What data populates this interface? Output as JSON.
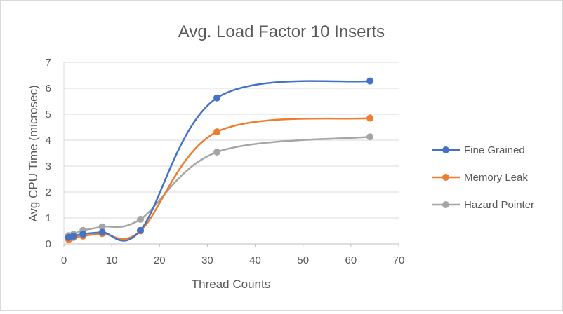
{
  "chart_data": {
    "type": "line",
    "title": "Avg. Load Factor 10 Inserts",
    "xlabel": "Thread Counts",
    "ylabel": "Avg CPU Time (microsec)",
    "xlim": [
      0,
      70
    ],
    "ylim": [
      0,
      7
    ],
    "x_ticks": [
      0,
      10,
      20,
      30,
      40,
      50,
      60,
      70
    ],
    "y_ticks": [
      0,
      1,
      2,
      3,
      4,
      5,
      6,
      7
    ],
    "x_tick_labels": [
      "0",
      "10",
      "20",
      "30",
      "40",
      "50",
      "60",
      "70"
    ],
    "y_tick_labels": [
      "0",
      "1",
      "2",
      "3",
      "4",
      "5",
      "6",
      "7"
    ],
    "grid": "horizontal",
    "legend_position": "right",
    "smooth": true,
    "x": [
      1,
      2,
      4,
      8,
      16,
      32,
      64
    ],
    "series": [
      {
        "name": "Fine Grained",
        "color": "#4472c4",
        "values": [
          0.25,
          0.3,
          0.38,
          0.45,
          0.52,
          5.63,
          6.28
        ]
      },
      {
        "name": "Memory Leak",
        "color": "#ed7d31",
        "values": [
          0.17,
          0.25,
          0.3,
          0.4,
          0.5,
          4.32,
          4.85
        ]
      },
      {
        "name": "Hazard Pointer",
        "color": "#a5a5a5",
        "values": [
          0.32,
          0.37,
          0.52,
          0.66,
          0.95,
          3.54,
          4.13
        ]
      }
    ]
  }
}
